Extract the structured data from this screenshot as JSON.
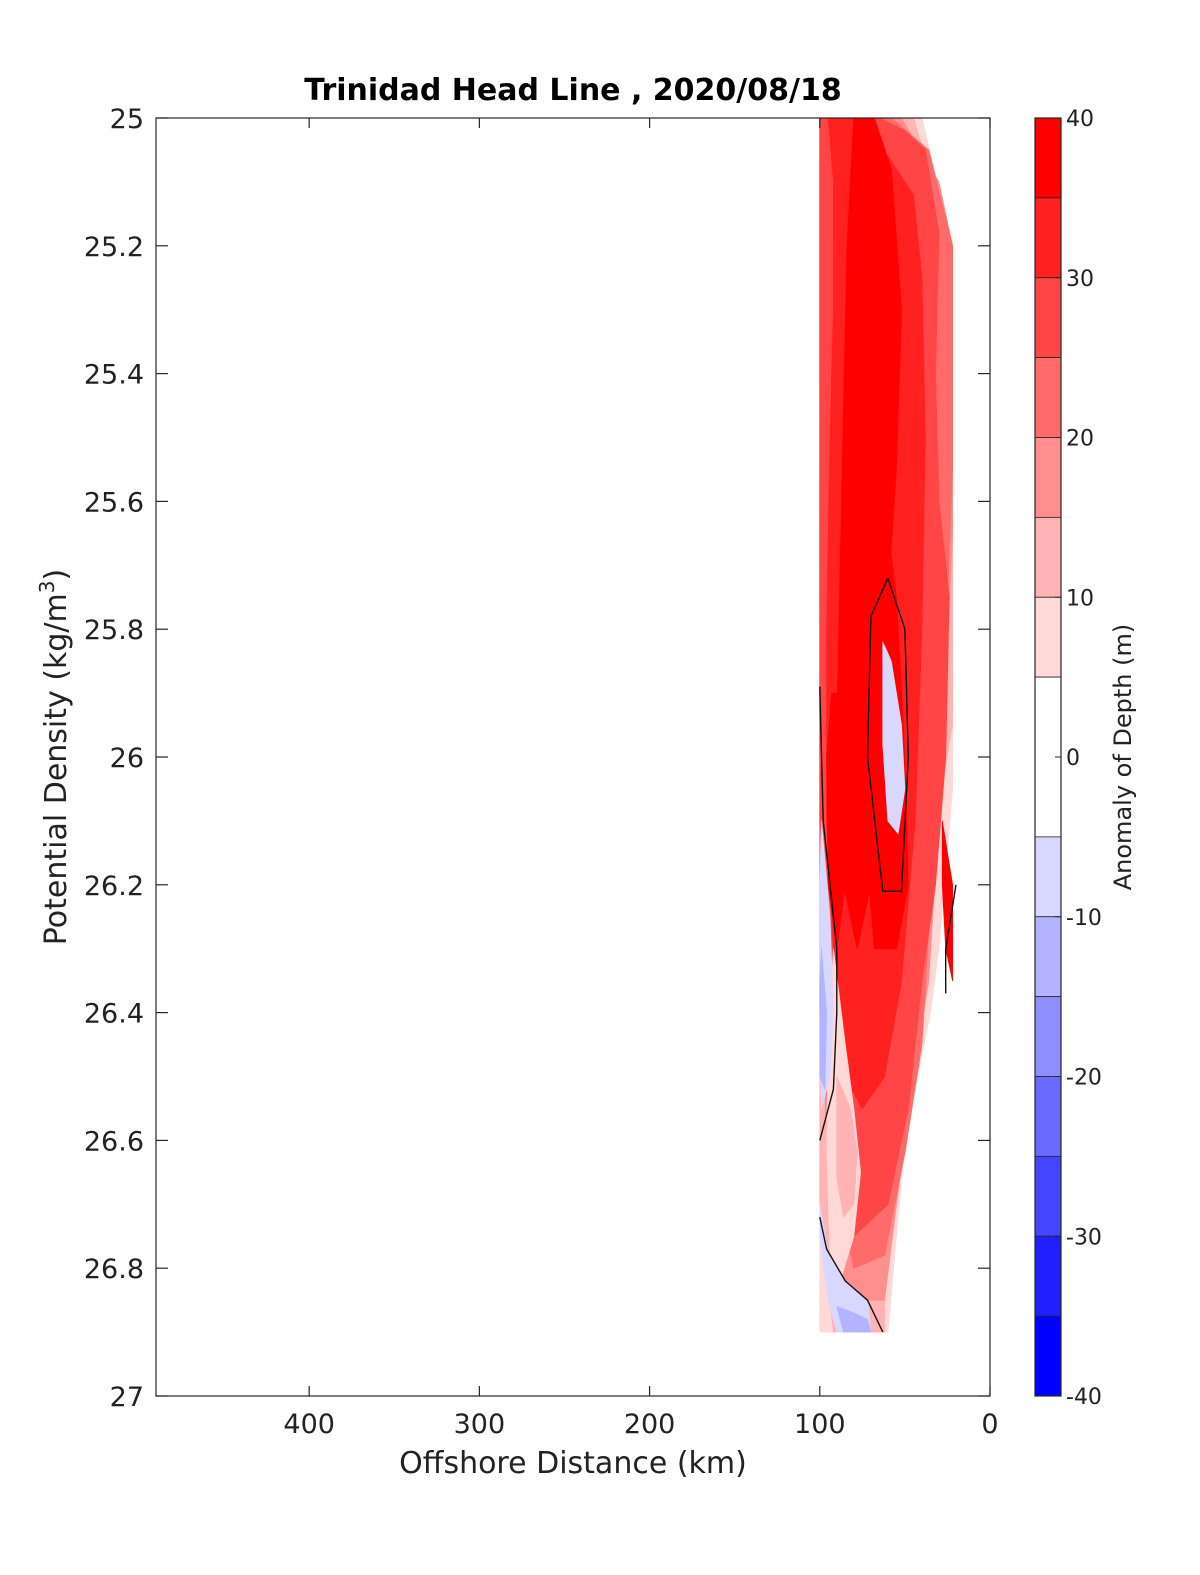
{
  "chart_data": {
    "type": "heatmap",
    "title": "Trinidad Head Line , 2020/08/18",
    "xlabel": "Offshore Distance (km)",
    "ylabel_main": "Potential Density (kg/m",
    "ylabel_sup": "3",
    "ylabel_close": ")",
    "xlim": [
      490,
      0
    ],
    "ylim": [
      25,
      27
    ],
    "x_reversed": true,
    "y_reversed": true,
    "x_ticks": [
      {
        "value": 400,
        "label": "400"
      },
      {
        "value": 300,
        "label": "300"
      },
      {
        "value": 200,
        "label": "200"
      },
      {
        "value": 100,
        "label": "100"
      },
      {
        "value": 0,
        "label": "0"
      }
    ],
    "y_ticks": [
      {
        "value": 25,
        "label": "25"
      },
      {
        "value": 25.2,
        "label": "25.2"
      },
      {
        "value": 25.4,
        "label": "25.4"
      },
      {
        "value": 25.6,
        "label": "25.6"
      },
      {
        "value": 25.8,
        "label": "25.8"
      },
      {
        "value": 26,
        "label": "26"
      },
      {
        "value": 26.2,
        "label": "26.2"
      },
      {
        "value": 26.4,
        "label": "26.4"
      },
      {
        "value": 26.6,
        "label": "26.6"
      },
      {
        "value": 26.8,
        "label": "26.8"
      },
      {
        "value": 27,
        "label": "27"
      }
    ],
    "colorbar": {
      "label": "Anomaly of Depth (m)",
      "range": [
        -40,
        40
      ],
      "tick_values": [
        40,
        30,
        20,
        10,
        0,
        -10,
        -20,
        -30,
        -40
      ],
      "tick_labels": [
        "40",
        "30",
        "20",
        "10",
        "0",
        "-10",
        "-20",
        "-30",
        "-40"
      ],
      "levels": [
        {
          "min": 35,
          "max": 40,
          "color": "#ff0000"
        },
        {
          "min": 30,
          "max": 35,
          "color": "#ff2020"
        },
        {
          "min": 25,
          "max": 30,
          "color": "#ff4545"
        },
        {
          "min": 20,
          "max": 25,
          "color": "#ff6a6a"
        },
        {
          "min": 15,
          "max": 20,
          "color": "#ff8e8e"
        },
        {
          "min": 10,
          "max": 15,
          "color": "#ffb3b3"
        },
        {
          "min": 5,
          "max": 10,
          "color": "#ffd8d8"
        },
        {
          "min": -5,
          "max": 5,
          "color": "#ffffff"
        },
        {
          "min": -10,
          "max": -5,
          "color": "#d8d8ff"
        },
        {
          "min": -15,
          "max": -10,
          "color": "#b3b3ff"
        },
        {
          "min": -20,
          "max": -15,
          "color": "#8e8eff"
        },
        {
          "min": -25,
          "max": -20,
          "color": "#6a6aff"
        },
        {
          "min": -30,
          "max": -25,
          "color": "#4545ff"
        },
        {
          "min": -35,
          "max": -30,
          "color": "#2020ff"
        },
        {
          "min": -40,
          "max": -35,
          "color": "#0000ff"
        }
      ]
    },
    "regions": [
      {
        "level": 7,
        "points": [
          [
            100,
            25
          ],
          [
            22,
            25
          ],
          [
            22,
            26.9
          ],
          [
            95,
            26.9
          ],
          [
            100,
            26.6
          ]
        ]
      },
      {
        "level": 6,
        "points": [
          [
            100,
            25
          ],
          [
            40,
            25
          ],
          [
            22,
            25.2
          ],
          [
            22,
            26.05
          ],
          [
            30,
            26.3
          ],
          [
            35,
            26.4
          ],
          [
            50,
            26.6
          ],
          [
            60,
            26.9
          ],
          [
            100,
            26.9
          ],
          [
            100,
            26.6
          ],
          [
            98,
            26.5
          ],
          [
            95,
            26.25
          ],
          [
            92,
            26.05
          ],
          [
            100,
            25.7
          ]
        ]
      },
      {
        "level": 5,
        "points": [
          [
            100,
            25
          ],
          [
            45,
            25
          ],
          [
            22,
            25.2
          ],
          [
            22,
            25.95
          ],
          [
            32,
            26.1
          ],
          [
            40,
            26.2
          ],
          [
            45,
            26.45
          ],
          [
            55,
            26.6
          ],
          [
            62,
            26.65
          ],
          [
            62,
            26.9
          ],
          [
            92,
            26.9
          ],
          [
            100,
            26.7
          ]
        ]
      },
      {
        "level": 4,
        "points": [
          [
            100,
            25
          ],
          [
            52,
            25
          ],
          [
            30,
            25.1
          ],
          [
            22,
            25.2
          ],
          [
            22,
            25.65
          ],
          [
            28,
            26.0
          ],
          [
            36,
            26.35
          ],
          [
            45,
            26.5
          ],
          [
            55,
            26.7
          ],
          [
            62,
            26.85
          ],
          [
            90,
            26.85
          ],
          [
            96,
            26.6
          ],
          [
            100,
            26.3
          ],
          [
            100,
            25.5
          ]
        ]
      },
      {
        "level": 3,
        "points": [
          [
            100,
            25
          ],
          [
            58,
            25
          ],
          [
            36,
            25.05
          ],
          [
            22,
            25.2
          ],
          [
            22,
            25.55
          ],
          [
            25,
            25.75
          ],
          [
            30,
            26.0
          ],
          [
            40,
            26.45
          ],
          [
            50,
            26.62
          ],
          [
            62,
            26.78
          ],
          [
            80,
            26.8
          ],
          [
            92,
            26.65
          ],
          [
            100,
            26.4
          ],
          [
            100,
            25.3
          ]
        ]
      },
      {
        "level": 2,
        "points": [
          [
            100,
            25
          ],
          [
            65,
            25
          ],
          [
            50,
            25.02
          ],
          [
            38,
            25.05
          ],
          [
            30,
            25.18
          ],
          [
            32,
            25.4
          ],
          [
            30,
            25.6
          ],
          [
            24,
            25.75
          ],
          [
            26,
            26.0
          ],
          [
            32,
            26.2
          ],
          [
            40,
            26.35
          ],
          [
            48,
            26.55
          ],
          [
            60,
            26.7
          ],
          [
            80,
            26.75
          ],
          [
            92,
            26.55
          ],
          [
            96,
            26.3
          ],
          [
            100,
            26.1
          ],
          [
            100,
            25.3
          ]
        ]
      },
      {
        "level": 1,
        "points": [
          [
            95,
            25
          ],
          [
            80,
            25
          ],
          [
            70,
            25.02
          ],
          [
            55,
            25.08
          ],
          [
            45,
            25.12
          ],
          [
            40,
            25.25
          ],
          [
            38,
            25.5
          ],
          [
            40,
            25.8
          ],
          [
            44,
            26.1
          ],
          [
            52,
            26.35
          ],
          [
            62,
            26.5
          ],
          [
            75,
            26.55
          ],
          [
            85,
            26.5
          ],
          [
            92,
            26.3
          ],
          [
            96,
            26.1
          ],
          [
            96,
            25.8
          ],
          [
            94,
            25.5
          ],
          [
            92,
            25.3
          ],
          [
            92,
            25.1
          ]
        ]
      },
      {
        "level": 0,
        "points": [
          [
            80,
            25.0
          ],
          [
            68,
            25.0
          ],
          [
            58,
            25.08
          ],
          [
            52,
            25.3
          ],
          [
            55,
            25.55
          ],
          [
            60,
            25.75
          ],
          [
            65,
            26.0
          ],
          [
            70,
            26.2
          ],
          [
            78,
            26.3
          ],
          [
            86,
            26.2
          ],
          [
            90,
            25.95
          ],
          [
            88,
            25.7
          ],
          [
            86,
            25.45
          ],
          [
            84,
            25.2
          ]
        ]
      },
      {
        "level": 6,
        "points": [
          [
            92,
            26.3
          ],
          [
            85,
            26.45
          ],
          [
            80,
            26.55
          ],
          [
            76,
            26.65
          ],
          [
            80,
            26.75
          ],
          [
            88,
            26.82
          ],
          [
            94,
            26.78
          ],
          [
            96,
            26.6
          ],
          [
            95,
            26.45
          ]
        ]
      },
      {
        "level": 5,
        "points": [
          [
            90,
            26.5
          ],
          [
            82,
            26.55
          ],
          [
            78,
            26.62
          ],
          [
            80,
            26.7
          ],
          [
            86,
            26.72
          ],
          [
            90,
            26.66
          ]
        ]
      },
      {
        "level": 0,
        "points": [
          [
            88,
            25.9
          ],
          [
            85,
            25.88
          ],
          [
            83,
            25.95
          ],
          [
            85,
            26.2
          ],
          [
            90,
            26.3
          ],
          [
            95,
            26.2
          ],
          [
            96,
            26.0
          ],
          [
            93,
            25.9
          ]
        ]
      },
      {
        "level": 0,
        "points": [
          [
            72,
            25.5
          ],
          [
            62,
            25.6
          ],
          [
            55,
            25.75
          ],
          [
            50,
            26.0
          ],
          [
            48,
            26.2
          ],
          [
            55,
            26.3
          ],
          [
            68,
            26.3
          ],
          [
            74,
            26.1
          ],
          [
            75,
            25.8
          ]
        ]
      },
      {
        "level": 0,
        "points": [
          [
            28,
            26.1
          ],
          [
            22,
            26.2
          ],
          [
            22,
            26.35
          ],
          [
            26,
            26.3
          ],
          [
            28,
            26.2
          ]
        ]
      },
      {
        "level": 8,
        "points": [
          [
            63,
            25.82
          ],
          [
            58,
            25.85
          ],
          [
            52,
            25.95
          ],
          [
            50,
            26.05
          ],
          [
            54,
            26.12
          ],
          [
            60,
            26.1
          ],
          [
            63,
            25.98
          ]
        ]
      },
      {
        "level": 8,
        "points": [
          [
            99,
            26.1
          ],
          [
            94,
            26.25
          ],
          [
            92,
            26.4
          ],
          [
            94,
            26.5
          ],
          [
            99,
            26.55
          ],
          [
            100,
            26.4
          ],
          [
            100,
            26.2
          ]
        ]
      },
      {
        "level": 9,
        "points": [
          [
            99,
            26.3
          ],
          [
            96,
            26.4
          ],
          [
            97,
            26.52
          ],
          [
            100,
            26.5
          ],
          [
            100,
            26.35
          ]
        ]
      },
      {
        "level": 8,
        "points": [
          [
            100,
            26.75
          ],
          [
            95,
            26.85
          ],
          [
            90,
            26.9
          ],
          [
            70,
            26.9
          ],
          [
            72,
            26.85
          ],
          [
            85,
            26.82
          ],
          [
            95,
            26.78
          ],
          [
            100,
            26.7
          ]
        ]
      },
      {
        "level": 9,
        "points": [
          [
            90,
            26.86
          ],
          [
            86,
            26.9
          ],
          [
            70,
            26.9
          ],
          [
            72,
            26.88
          ],
          [
            80,
            26.87
          ]
        ]
      }
    ],
    "contours": [
      {
        "points": [
          [
            60,
            25.72
          ],
          [
            70,
            25.78
          ],
          [
            72,
            26.0
          ],
          [
            63,
            26.21
          ],
          [
            52,
            26.21
          ],
          [
            48,
            26.0
          ],
          [
            50,
            25.8
          ],
          [
            60,
            25.72
          ]
        ]
      },
      {
        "points": [
          [
            100,
            25.89
          ],
          [
            98,
            26.1
          ],
          [
            90,
            26.3
          ],
          [
            90,
            26.4
          ],
          [
            92,
            26.52
          ],
          [
            100,
            26.6
          ]
        ]
      },
      {
        "points": [
          [
            100,
            26.72
          ],
          [
            96,
            26.77
          ],
          [
            85,
            26.82
          ],
          [
            72,
            26.85
          ],
          [
            63,
            26.9
          ]
        ]
      },
      {
        "points": [
          [
            20,
            26.2
          ],
          [
            26,
            26.3
          ],
          [
            26,
            26.37
          ]
        ]
      }
    ]
  }
}
